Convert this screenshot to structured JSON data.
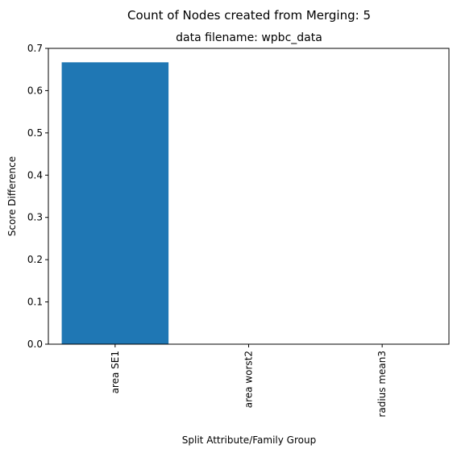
{
  "chart_data": {
    "type": "bar",
    "suptitle": "Count of Nodes created from Merging: 5",
    "title": "data filename: wpbc_data",
    "xlabel": "Split Attribute/Family Group",
    "ylabel": "Score Difference",
    "categories": [
      "area SE1",
      "area worst2",
      "radius mean3"
    ],
    "values": [
      0.667,
      0.0,
      0.0
    ],
    "ylim": [
      0,
      0.7
    ],
    "yticks": [
      "0.0",
      "0.1",
      "0.2",
      "0.3",
      "0.4",
      "0.5",
      "0.6",
      "0.7"
    ],
    "bar_color": "#1f77b4",
    "grid": false
  }
}
